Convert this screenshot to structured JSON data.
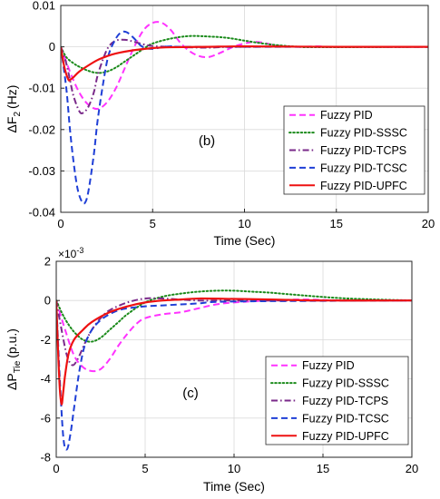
{
  "colors": {
    "fuzzy_pid": "#ff33ff",
    "sssc": "#1a8a1a",
    "tcps": "#7a2a8a",
    "tcsc": "#1f3fd6",
    "upfc": "#ee1111"
  },
  "chart_data": [
    {
      "type": "line",
      "panel_label": "(b)",
      "xlabel": "Time (Sec)",
      "ylabel_main": "ΔF",
      "ylabel_sub": "2",
      "ylabel_unit": "(Hz)",
      "exponent_label": "",
      "xlim": [
        0,
        20
      ],
      "ylim": [
        -0.04,
        0.01
      ],
      "xticks": [
        0,
        5,
        10,
        15,
        20
      ],
      "xtick_labels": [
        "0",
        "5",
        "10",
        "15",
        "20"
      ],
      "yticks": [
        -0.04,
        -0.03,
        -0.02,
        -0.01,
        0,
        0.01
      ],
      "ytick_labels": [
        "-0.04",
        "-0.03",
        "-0.02",
        "-0.01",
        "0",
        "0.01"
      ],
      "grid": true,
      "legend_position": "right",
      "series": [
        {
          "name": "Fuzzy PID",
          "style": "dash",
          "color_key": "fuzzy_pid",
          "x": [
            0,
            0.5,
            1.0,
            1.5,
            2.0,
            2.5,
            3.0,
            3.5,
            4.0,
            4.5,
            5.0,
            5.5,
            6.0,
            6.5,
            7.0,
            7.5,
            8.0,
            8.5,
            9.0,
            9.5,
            10.0,
            10.5,
            11.0,
            11.5,
            12.0,
            13.0,
            14.0,
            15.0,
            20.0
          ],
          "y": [
            0,
            -0.006,
            -0.011,
            -0.014,
            -0.015,
            -0.0135,
            -0.01,
            -0.005,
            0.0,
            0.004,
            0.0058,
            0.0058,
            0.004,
            0.001,
            -0.001,
            -0.0022,
            -0.0025,
            -0.0018,
            -0.0008,
            0.0002,
            0.0008,
            0.0012,
            0.001,
            0.0005,
            0.0002,
            0.0,
            0.0001,
            0.0,
            0.0
          ]
        },
        {
          "name": "Fuzzy PID-SSSC",
          "style": "dot",
          "color_key": "sssc",
          "x": [
            0,
            0.3,
            0.7,
            1.0,
            1.5,
            2.0,
            2.5,
            3.0,
            3.5,
            4.0,
            4.5,
            5.0,
            6.0,
            7.0,
            8.0,
            9.0,
            10.0,
            11.0,
            12.0,
            13.0,
            14.0,
            20.0
          ],
          "y": [
            0,
            -0.0025,
            -0.004,
            -0.0048,
            -0.0058,
            -0.0063,
            -0.006,
            -0.005,
            -0.0035,
            -0.002,
            -0.0005,
            0.0008,
            0.002,
            0.0026,
            0.0025,
            0.0022,
            0.0015,
            0.0008,
            0.0003,
            0.0,
            -0.0001,
            0.0
          ]
        },
        {
          "name": "Fuzzy PID-TCPS",
          "style": "dashdot",
          "color_key": "tcps",
          "x": [
            0,
            0.3,
            0.5,
            0.7,
            1.0,
            1.2,
            1.5,
            1.8,
            2.0,
            2.3,
            2.6,
            3.0,
            3.5,
            4.0,
            4.5,
            5.0,
            6.0,
            8.0,
            10.0,
            20.0
          ],
          "y": [
            0,
            -0.004,
            -0.008,
            -0.012,
            -0.0155,
            -0.016,
            -0.0145,
            -0.011,
            -0.007,
            -0.003,
            0.0,
            0.0015,
            0.0017,
            0.0012,
            0.0006,
            0.0002,
            0.0,
            -0.0002,
            0.0,
            0.0
          ]
        },
        {
          "name": "Fuzzy PID-TCSC",
          "style": "dash",
          "color_key": "tcsc",
          "x": [
            0,
            0.3,
            0.5,
            0.7,
            0.9,
            1.1,
            1.3,
            1.5,
            1.8,
            2.0,
            2.3,
            2.6,
            3.0,
            3.3,
            3.6,
            4.0,
            4.3,
            4.6,
            5.0,
            5.5,
            6.0,
            7.0,
            20.0
          ],
          "y": [
            0,
            -0.01,
            -0.02,
            -0.028,
            -0.034,
            -0.037,
            -0.0378,
            -0.035,
            -0.026,
            -0.018,
            -0.009,
            -0.002,
            0.002,
            0.0035,
            0.0035,
            0.002,
            0.0005,
            -0.0003,
            -0.0005,
            -0.0001,
            0.0001,
            0.0,
            0.0
          ]
        },
        {
          "name": "Fuzzy PID-UPFC",
          "style": "solid",
          "color_key": "upfc",
          "x": [
            0,
            0.2,
            0.4,
            0.5,
            0.7,
            1.0,
            1.5,
            2.0,
            2.5,
            3.0,
            4.0,
            5.0,
            6.0,
            8.0,
            10.0,
            15.0,
            20.0
          ],
          "y": [
            0,
            -0.005,
            -0.0078,
            -0.008,
            -0.0073,
            -0.006,
            -0.0045,
            -0.0032,
            -0.0023,
            -0.0016,
            -0.0008,
            -0.0003,
            -0.0001,
            0.0,
            0.0001,
            0.0,
            0.0
          ]
        }
      ]
    },
    {
      "type": "line",
      "panel_label": "(c)",
      "xlabel": "Time (Sec)",
      "ylabel_main": "ΔP",
      "ylabel_sub": "Tie",
      "ylabel_unit": "(p.u.)",
      "exponent_label": "×10-3",
      "exponent_base": "×10",
      "exponent_power": "-3",
      "xlim": [
        0,
        20
      ],
      "ylim": [
        -8,
        2
      ],
      "xticks": [
        0,
        5,
        10,
        15,
        20
      ],
      "xtick_labels": [
        "0",
        "5",
        "10",
        "15",
        "20"
      ],
      "yticks": [
        -8,
        -6,
        -4,
        -2,
        0,
        2
      ],
      "ytick_labels": [
        "-8",
        "-6",
        "-4",
        "-2",
        "0",
        "2"
      ],
      "grid": true,
      "legend_position": "bottom-right",
      "series": [
        {
          "name": "Fuzzy PID",
          "style": "dash",
          "color_key": "fuzzy_pid",
          "x": [
            0,
            0.5,
            1.0,
            1.5,
            2.0,
            2.5,
            3.0,
            3.5,
            4.0,
            4.5,
            5.0,
            6.0,
            7.0,
            8.0,
            9.0,
            10.0,
            12.0,
            14.0,
            16.0,
            20.0
          ],
          "y": [
            0,
            -1.5,
            -2.8,
            -3.4,
            -3.6,
            -3.5,
            -3.0,
            -2.3,
            -1.7,
            -1.2,
            -0.9,
            -0.7,
            -0.6,
            -0.4,
            -0.2,
            -0.1,
            0.0,
            0.05,
            0.0,
            0.0
          ]
        },
        {
          "name": "Fuzzy PID-SSSC",
          "style": "dot",
          "color_key": "sssc",
          "x": [
            0,
            0.3,
            0.6,
            1.0,
            1.5,
            2.0,
            2.5,
            3.0,
            3.5,
            4.0,
            5.0,
            6.0,
            7.0,
            8.0,
            9.0,
            10.0,
            11.0,
            12.0,
            14.0,
            16.0,
            18.0,
            20.0
          ],
          "y": [
            0,
            -0.6,
            -1.1,
            -1.6,
            -2.0,
            -2.1,
            -1.9,
            -1.5,
            -1.1,
            -0.7,
            -0.1,
            0.2,
            0.35,
            0.45,
            0.5,
            0.5,
            0.45,
            0.4,
            0.25,
            0.12,
            0.05,
            0.0
          ]
        },
        {
          "name": "Fuzzy PID-TCPS",
          "style": "dashdot",
          "color_key": "tcps",
          "x": [
            0,
            0.3,
            0.6,
            0.9,
            1.2,
            1.6,
            2.0,
            2.5,
            3.0,
            4.0,
            5.0,
            6.0,
            8.0,
            10.0,
            20.0
          ],
          "y": [
            0,
            -1.5,
            -2.8,
            -3.3,
            -3.0,
            -2.2,
            -1.5,
            -0.9,
            -0.5,
            -0.1,
            0.1,
            0.1,
            0.0,
            0.0,
            0.0
          ]
        },
        {
          "name": "Fuzzy PID-TCSC",
          "style": "dash",
          "color_key": "tcsc",
          "x": [
            0,
            0.2,
            0.4,
            0.6,
            0.8,
            1.0,
            1.3,
            1.6,
            2.0,
            2.5,
            3.0,
            3.5,
            4.0,
            5.0,
            6.0,
            7.0,
            8.0,
            10.0,
            20.0
          ],
          "y": [
            0,
            -4.0,
            -7.0,
            -7.6,
            -6.8,
            -5.5,
            -3.6,
            -2.3,
            -1.5,
            -1.0,
            -0.7,
            -0.5,
            -0.4,
            -0.3,
            -0.25,
            -0.2,
            -0.15,
            -0.05,
            0.0
          ]
        },
        {
          "name": "Fuzzy PID-UPFC",
          "style": "solid",
          "color_key": "upfc",
          "x": [
            0,
            0.1,
            0.2,
            0.3,
            0.4,
            0.5,
            0.7,
            1.0,
            1.5,
            2.0,
            3.0,
            4.0,
            5.0,
            6.0,
            7.0,
            8.0,
            10.0,
            12.0,
            15.0,
            20.0
          ],
          "y": [
            0,
            -2.5,
            -4.5,
            -5.3,
            -4.6,
            -3.8,
            -2.7,
            -2.0,
            -1.5,
            -1.1,
            -0.6,
            -0.3,
            -0.1,
            0.0,
            0.05,
            0.1,
            0.08,
            0.05,
            0.0,
            0.0
          ]
        }
      ]
    }
  ]
}
